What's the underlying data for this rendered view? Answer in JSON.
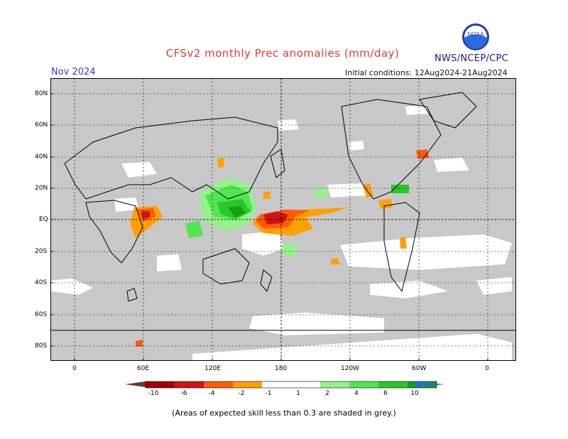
{
  "header": {
    "title": "CFSv2 monthly Prec anomalies (mm/day)",
    "agency": "NWS/NCEP/CPC",
    "month": "Nov 2024",
    "initial_conditions": "Initial conditions: 12Aug2024-21Aug2024"
  },
  "logo": {
    "text": "NOAA",
    "icon": "noaa-logo-icon"
  },
  "axes": {
    "y_labels": [
      "80N",
      "60N",
      "40N",
      "20N",
      "EQ",
      "20S",
      "40S",
      "60S",
      "80S"
    ],
    "x_labels": [
      "0",
      "60E",
      "120E",
      "180",
      "120W",
      "60W",
      "0"
    ]
  },
  "colorbar": {
    "labels": [
      "-10",
      "-6",
      "-4",
      "-2",
      "-1",
      "1",
      "2",
      "4",
      "6",
      "10"
    ],
    "colors": {
      "lt_minus10": "#6b3a2a",
      "m10_m6": "#a50000",
      "m6_m4": "#d21414",
      "m4_m2": "#ff5a0a",
      "m2_m1": "#ffa000",
      "m1_p1": "#ffffff",
      "p1_p2": "#96f08c",
      "p2_p4": "#50e650",
      "p4_p6": "#28c828",
      "p6_p10": "#14a014",
      "gt_10": "#2a6be0"
    }
  },
  "colors": {
    "skill_grey": "#c8c8c8",
    "ocean_white": "#ffffff",
    "coast": "#000000"
  },
  "footnote": "(Areas of expected skill less than 0.3 are shaded in grey.)"
}
